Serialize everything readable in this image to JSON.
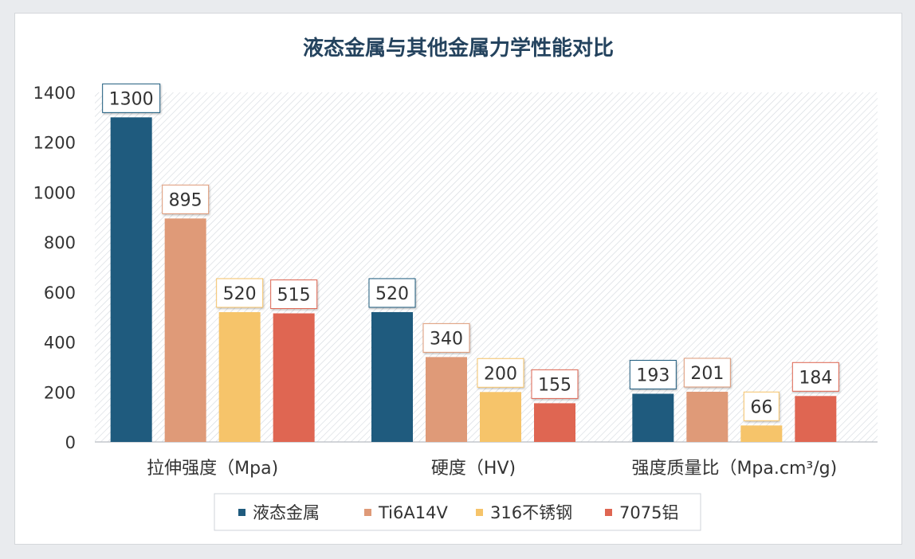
{
  "chart_data": {
    "type": "bar",
    "title": "液态金属与其他金属力学性能对比",
    "categories": [
      "拉伸强度（Mpa)",
      "硬度（HV)",
      "强度质量比（Mpa.cm³/g)"
    ],
    "series": [
      {
        "name": "液态金属",
        "color": "#1f5b7e",
        "values": [
          1300,
          520,
          193
        ]
      },
      {
        "name": "Ti6A14V",
        "color": "#df9a78",
        "values": [
          895,
          340,
          201
        ]
      },
      {
        "name": "316不锈钢",
        "color": "#f6c46a",
        "values": [
          520,
          200,
          66
        ]
      },
      {
        "name": "7075铝",
        "color": "#df6652",
        "values": [
          515,
          155,
          184
        ]
      }
    ],
    "ylim": [
      0,
      1400
    ],
    "yticks": [
      0,
      200,
      400,
      600,
      800,
      1000,
      1200,
      1400
    ],
    "grid": false,
    "legend_position": "bottom",
    "background": "hatched"
  }
}
